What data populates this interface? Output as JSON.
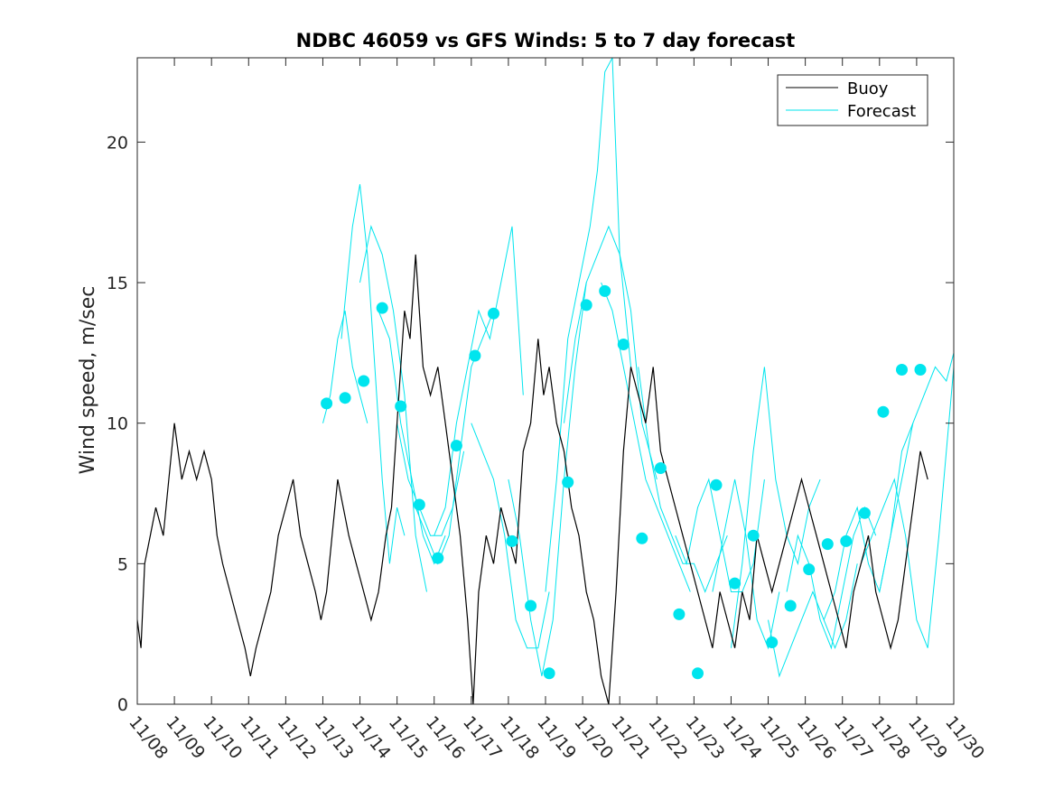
{
  "chart_data": {
    "type": "line",
    "title": "NDBC 46059 vs GFS Winds: 5 to 7 day forecast",
    "ylabel": "Wind speed, m/sec",
    "xlabel": "",
    "xlim": [
      0,
      22
    ],
    "ylim": [
      0,
      23
    ],
    "y_ticks": [
      0,
      5,
      10,
      15,
      20
    ],
    "x_ticks": [
      0,
      1,
      2,
      3,
      4,
      5,
      6,
      7,
      8,
      9,
      10,
      11,
      12,
      13,
      14,
      15,
      16,
      17,
      18,
      19,
      20,
      21,
      22
    ],
    "x_tick_labels": [
      "11/08",
      "11/09",
      "11/10",
      "11/11",
      "11/12",
      "11/13",
      "11/14",
      "11/15",
      "11/16",
      "11/17",
      "11/18",
      "11/19",
      "11/20",
      "11/21",
      "11/22",
      "11/23",
      "11/24",
      "11/25",
      "11/26",
      "11/27",
      "11/28",
      "11/29",
      "11/30"
    ],
    "grid": false,
    "legend_position": "top-right",
    "colors": {
      "buoy": "#000000",
      "forecast": "#00e5ee",
      "axis": "#262626"
    },
    "series": [
      {
        "name": "Buoy",
        "kind": "line",
        "x": [
          0,
          0.1,
          0.2,
          0.35,
          0.5,
          0.7,
          0.85,
          1.0,
          1.2,
          1.4,
          1.6,
          1.8,
          2.0,
          2.15,
          2.3,
          2.5,
          2.7,
          2.9,
          3.05,
          3.2,
          3.4,
          3.6,
          3.8,
          4.0,
          4.2,
          4.4,
          4.6,
          4.8,
          4.95,
          5.1,
          5.25,
          5.4,
          5.55,
          5.7,
          5.9,
          6.1,
          6.3,
          6.5,
          6.7,
          6.85,
          7.0,
          7.1,
          7.2,
          7.35,
          7.5,
          7.7,
          7.9,
          8.1,
          8.3,
          8.5,
          8.7,
          8.9,
          9.05,
          9.2,
          9.4,
          9.6,
          9.8,
          10.0,
          10.2,
          10.4,
          10.6,
          10.8,
          10.95,
          11.1,
          11.3,
          11.5,
          11.7,
          11.9,
          12.1,
          12.3,
          12.5,
          12.7,
          12.9,
          13.1,
          13.3,
          13.5,
          13.7,
          13.9,
          14.1,
          14.3,
          14.5,
          14.7,
          14.9,
          15.1,
          15.3,
          15.5,
          15.7,
          15.9,
          16.1,
          16.3,
          16.5,
          16.7,
          16.9,
          17.1,
          17.3,
          17.5,
          17.7,
          17.9,
          18.1,
          18.3,
          18.5,
          18.7,
          18.9,
          19.1,
          19.3,
          19.5,
          19.7,
          19.9,
          20.1,
          20.3,
          20.5,
          20.7,
          20.9,
          21.1,
          21.3
        ],
        "y": [
          3,
          2,
          5,
          6,
          7,
          6,
          8,
          10,
          8,
          9,
          8,
          9,
          8,
          6,
          5,
          4,
          3,
          2,
          1,
          2,
          3,
          4,
          6,
          7,
          8,
          6,
          5,
          4,
          3,
          4,
          6,
          8,
          7,
          6,
          5,
          4,
          3,
          4,
          6,
          7,
          10,
          12,
          14,
          13,
          16,
          12,
          11,
          12,
          10,
          8,
          6,
          3,
          0,
          4,
          6,
          5,
          7,
          6,
          5,
          9,
          10,
          13,
          11,
          12,
          10,
          9,
          7,
          6,
          4,
          3,
          1,
          0,
          4,
          9,
          12,
          11,
          10,
          12,
          9,
          8,
          7,
          6,
          5,
          4,
          3,
          2,
          4,
          3,
          2,
          4,
          3,
          6,
          5,
          4,
          5,
          6,
          7,
          8,
          7,
          6,
          5,
          4,
          3,
          2,
          4,
          5,
          6,
          4,
          3,
          2,
          3,
          5,
          7,
          9,
          8
        ]
      },
      {
        "name": "Forecast",
        "kind": "thin-lines",
        "segments": [
          {
            "x": [
              5.0,
              5.2,
              5.4,
              5.6,
              5.8,
              6.0,
              6.2
            ],
            "y": [
              10,
              11,
              13,
              14,
              12,
              11,
              10
            ]
          },
          {
            "x": [
              5.5,
              5.8,
              6.0,
              6.2,
              6.4,
              6.6,
              6.8,
              7.0,
              7.2
            ],
            "y": [
              13,
              17,
              18.5,
              16,
              12,
              8,
              5,
              7,
              6
            ]
          },
          {
            "x": [
              6.0,
              6.3,
              6.6,
              6.9,
              7.2,
              7.5,
              7.8
            ],
            "y": [
              15,
              17,
              16,
              14,
              11,
              6,
              4
            ]
          },
          {
            "x": [
              6.5,
              6.8,
              7.1,
              7.4,
              7.7,
              8.0,
              8.3
            ],
            "y": [
              14,
              13,
              10,
              8,
              6,
              5,
              6
            ]
          },
          {
            "x": [
              7.0,
              7.3,
              7.6,
              7.9,
              8.2,
              8.5,
              8.8
            ],
            "y": [
              10,
              8,
              7,
              6,
              6,
              7,
              9
            ]
          },
          {
            "x": [
              7.5,
              7.8,
              8.1,
              8.4,
              8.7,
              9.0,
              9.3,
              9.6
            ],
            "y": [
              7,
              6,
              5,
              6,
              9,
              12,
              13,
              14
            ]
          },
          {
            "x": [
              8.0,
              8.3,
              8.6,
              8.9,
              9.2,
              9.5,
              9.8,
              10.1,
              10.4
            ],
            "y": [
              6,
              7,
              10,
              12,
              14,
              13,
              15,
              17,
              11
            ]
          },
          {
            "x": [
              9.0,
              9.3,
              9.6,
              9.9,
              10.2,
              10.5,
              10.8,
              11.1
            ],
            "y": [
              10,
              9,
              8,
              6,
              3,
              2,
              2,
              4
            ]
          },
          {
            "x": [
              10.0,
              10.3,
              10.6,
              10.9,
              11.2,
              11.5,
              11.8,
              12.1
            ],
            "y": [
              8,
              6,
              3,
              1,
              3,
              8,
              12,
              15
            ]
          },
          {
            "x": [
              11.0,
              11.3,
              11.6,
              11.9,
              12.2,
              12.4,
              12.6,
              12.8,
              13.0,
              13.3
            ],
            "y": [
              4,
              8,
              13,
              15,
              17,
              19,
              22.5,
              23,
              16,
              12
            ]
          },
          {
            "x": [
              11.5,
              11.8,
              12.1,
              12.4,
              12.7,
              13.0,
              13.3,
              13.6,
              14.0
            ],
            "y": [
              10,
              13,
              15,
              16,
              17,
              16,
              14,
              10,
              8
            ]
          },
          {
            "x": [
              12.5,
              12.8,
              13.1,
              13.4,
              13.7,
              14.0,
              14.3,
              14.6,
              14.9
            ],
            "y": [
              15,
              14,
              12,
              10,
              8,
              7,
              6,
              5,
              4
            ]
          },
          {
            "x": [
              13.5,
              13.8,
              14.1,
              14.4,
              14.7,
              15.0,
              15.3,
              15.6,
              15.9
            ],
            "y": [
              12,
              9,
              7,
              6,
              5,
              5,
              4,
              5,
              6
            ]
          },
          {
            "x": [
              14.5,
              14.8,
              15.1,
              15.4,
              15.7,
              16.0,
              16.3,
              16.6,
              16.9
            ],
            "y": [
              6,
              5,
              7,
              8,
              6,
              4,
              4,
              5,
              8
            ]
          },
          {
            "x": [
              15.5,
              15.8,
              16.1,
              16.4,
              16.7,
              17.0,
              17.3
            ],
            "y": [
              4,
              6,
              8,
              6,
              3,
              2,
              4
            ]
          },
          {
            "x": [
              16.0,
              16.3,
              16.6,
              16.9,
              17.2,
              17.5,
              17.8,
              18.1,
              18.4
            ],
            "y": [
              2,
              5,
              9,
              12,
              8,
              6,
              5,
              7,
              8
            ]
          },
          {
            "x": [
              17.0,
              17.3,
              17.6,
              17.9,
              18.2,
              18.5,
              18.8,
              19.1,
              19.4
            ],
            "y": [
              3,
              1,
              2,
              3,
              4,
              3,
              2,
              3,
              5
            ]
          },
          {
            "x": [
              17.5,
              17.8,
              18.1,
              18.4,
              18.7,
              19.0,
              19.3,
              19.6,
              19.9
            ],
            "y": [
              4,
              6,
              5,
              3,
              2,
              4,
              6,
              7,
              6
            ]
          },
          {
            "x": [
              18.5,
              18.8,
              19.1,
              19.4,
              19.7,
              20.0,
              20.3,
              20.6,
              20.9
            ],
            "y": [
              3,
              4,
              6,
              7,
              5,
              4,
              6,
              9,
              10
            ]
          },
          {
            "x": [
              19.5,
              19.8,
              20.1,
              20.4,
              20.7,
              21.0,
              21.3,
              21.6,
              22.0
            ],
            "y": [
              5,
              6,
              7,
              8,
              6,
              3,
              2,
              6,
              12
            ]
          },
          {
            "x": [
              20.0,
              20.3,
              20.6,
              20.9,
              21.2,
              21.5,
              21.8,
              22.0
            ],
            "y": [
              4,
              6,
              8,
              10,
              11,
              12,
              11.5,
              12.5
            ]
          }
        ]
      },
      {
        "name": "",
        "kind": "markers",
        "x": [
          5.1,
          5.6,
          6.1,
          6.6,
          7.1,
          7.6,
          8.1,
          8.6,
          9.1,
          9.6,
          10.1,
          10.6,
          11.1,
          11.6,
          12.1,
          12.6,
          13.1,
          13.6,
          14.1,
          14.6,
          15.1,
          15.6,
          16.1,
          16.6,
          17.1,
          17.6,
          18.1,
          18.6,
          19.1,
          19.6,
          20.1,
          20.6,
          21.1
        ],
        "y": [
          10.7,
          10.9,
          11.5,
          14.1,
          10.6,
          7.1,
          5.2,
          9.2,
          12.4,
          13.9,
          5.8,
          3.5,
          1.1,
          7.9,
          14.2,
          14.7,
          12.8,
          5.9,
          8.4,
          3.2,
          1.1,
          7.8,
          4.3,
          6.0,
          2.2,
          3.5,
          4.8,
          5.7,
          5.8,
          6.8,
          10.4,
          11.9,
          11.9
        ]
      }
    ],
    "legend": [
      {
        "label": "Buoy",
        "color": "#000000"
      },
      {
        "label": "Forecast",
        "color": "#00e5ee"
      }
    ]
  }
}
